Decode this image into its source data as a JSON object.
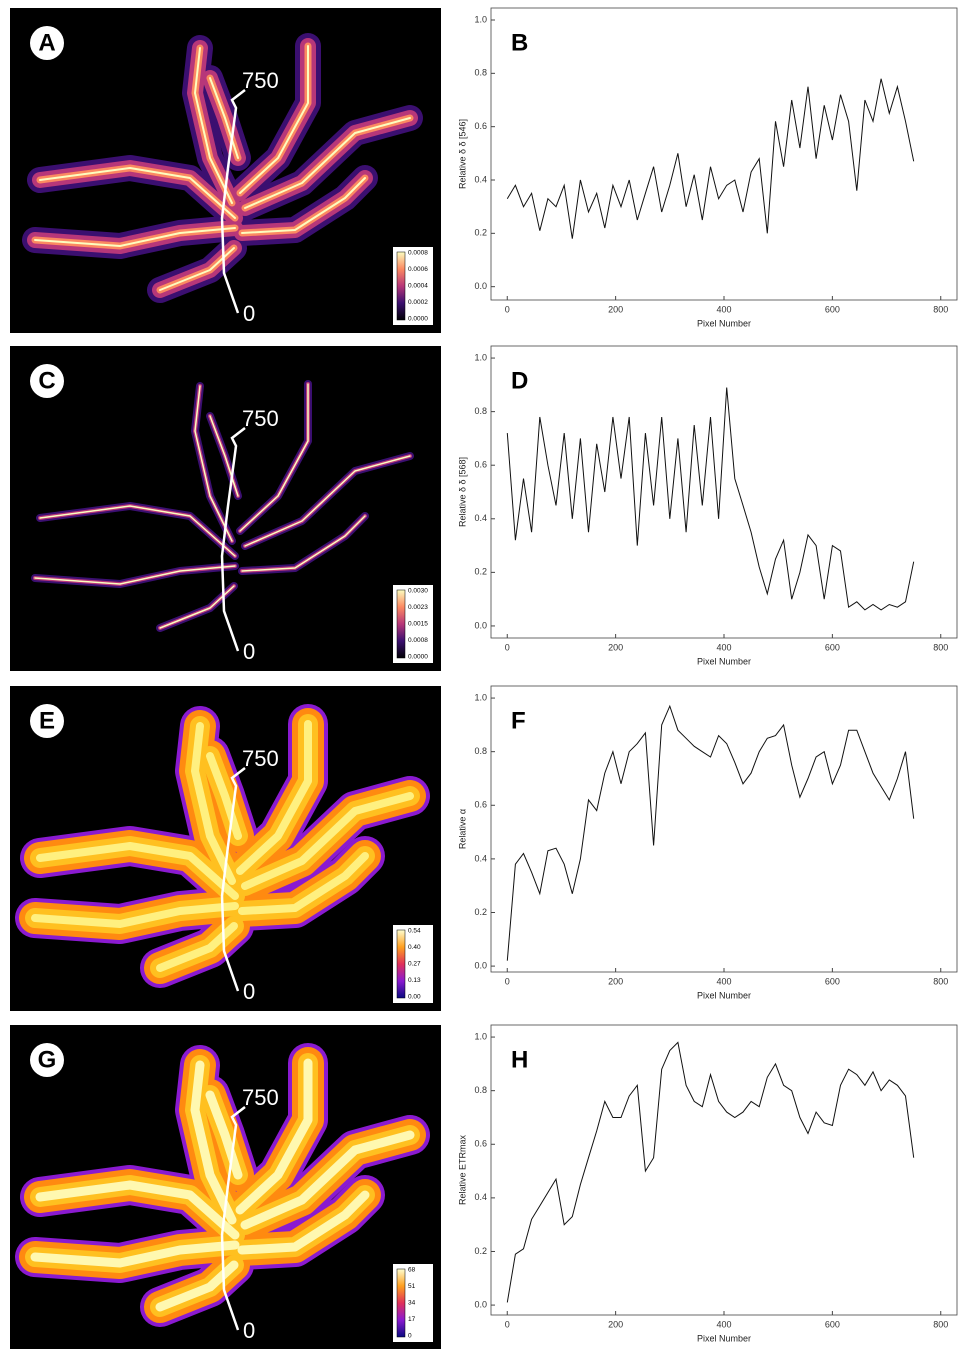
{
  "images": [
    {
      "label": "A",
      "track_end": "750",
      "track_start": "0",
      "colorbar": [
        "0.0008",
        "0.0006",
        "0.0004",
        "0.0002",
        "0.0000"
      ]
    },
    {
      "label": "C",
      "track_end": "750",
      "track_start": "0",
      "colorbar": [
        "0.0030",
        "0.0023",
        "0.0015",
        "0.0008",
        "0.0000"
      ]
    },
    {
      "label": "E",
      "track_end": "750",
      "track_start": "0",
      "colorbar": [
        "0.54",
        "0.40",
        "0.27",
        "0.13",
        "0.00"
      ]
    },
    {
      "label": "G",
      "track_end": "750",
      "track_start": "0",
      "colorbar": [
        "68",
        "51",
        "34",
        "17",
        "0"
      ]
    }
  ],
  "chart_data": [
    {
      "type": "line",
      "title": "B",
      "xlabel": "Pixel Number",
      "ylabel": "Relative δ δ [546]",
      "color": "#111111",
      "x": [
        0,
        15,
        30,
        45,
        60,
        75,
        90,
        105,
        120,
        135,
        150,
        165,
        180,
        195,
        210,
        225,
        240,
        255,
        270,
        285,
        300,
        315,
        330,
        345,
        360,
        375,
        390,
        405,
        420,
        435,
        450,
        465,
        480,
        495,
        510,
        525,
        540,
        555,
        570,
        585,
        600,
        615,
        630,
        645,
        660,
        675,
        690,
        705,
        720,
        735,
        750
      ],
      "values": [
        0.33,
        0.38,
        0.3,
        0.35,
        0.21,
        0.33,
        0.3,
        0.38,
        0.18,
        0.4,
        0.28,
        0.35,
        0.22,
        0.38,
        0.3,
        0.4,
        0.25,
        0.35,
        0.45,
        0.28,
        0.38,
        0.5,
        0.3,
        0.42,
        0.25,
        0.45,
        0.33,
        0.38,
        0.4,
        0.28,
        0.43,
        0.48,
        0.2,
        0.62,
        0.45,
        0.7,
        0.52,
        0.75,
        0.48,
        0.68,
        0.55,
        0.72,
        0.62,
        0.36,
        0.7,
        0.62,
        0.78,
        0.65,
        0.75,
        0.62,
        0.47
      ],
      "xlim": [
        -30,
        830
      ],
      "ylim": [
        -0.05,
        1.045
      ],
      "xticks": [
        0,
        200,
        400,
        600,
        800
      ],
      "yticks": [
        {
          "value": 0,
          "label": "0.0"
        },
        {
          "value": 0.2,
          "label": "0.2"
        },
        {
          "value": 0.4,
          "label": "0.4"
        },
        {
          "value": 0.6,
          "label": "0.6"
        },
        {
          "value": 0.8,
          "label": "0.8"
        },
        {
          "value": 1,
          "label": "1.0"
        }
      ]
    },
    {
      "type": "line",
      "title": "D",
      "xlabel": "Pixel Number",
      "ylabel": "Relative δ δ [568]",
      "color": "#111111",
      "x": [
        0,
        15,
        30,
        45,
        60,
        75,
        90,
        105,
        120,
        135,
        150,
        165,
        180,
        195,
        210,
        225,
        240,
        255,
        270,
        285,
        300,
        315,
        330,
        345,
        360,
        375,
        390,
        405,
        420,
        435,
        450,
        465,
        480,
        495,
        510,
        525,
        540,
        555,
        570,
        585,
        600,
        615,
        630,
        645,
        660,
        675,
        690,
        705,
        720,
        735,
        750
      ],
      "values": [
        0.72,
        0.32,
        0.55,
        0.35,
        0.78,
        0.6,
        0.45,
        0.72,
        0.4,
        0.7,
        0.35,
        0.68,
        0.5,
        0.78,
        0.55,
        0.78,
        0.3,
        0.72,
        0.45,
        0.78,
        0.4,
        0.7,
        0.35,
        0.75,
        0.45,
        0.78,
        0.4,
        0.89,
        0.55,
        0.45,
        0.35,
        0.22,
        0.12,
        0.25,
        0.32,
        0.1,
        0.2,
        0.34,
        0.3,
        0.1,
        0.3,
        0.28,
        0.07,
        0.09,
        0.06,
        0.08,
        0.06,
        0.08,
        0.07,
        0.09,
        0.24
      ],
      "xlim": [
        -30,
        830
      ],
      "ylim": [
        -0.045,
        1.045
      ],
      "xticks": [
        0,
        200,
        400,
        600,
        800
      ],
      "yticks": [
        {
          "value": 0,
          "label": "0.0"
        },
        {
          "value": 0.2,
          "label": "0.2"
        },
        {
          "value": 0.4,
          "label": "0.4"
        },
        {
          "value": 0.6,
          "label": "0.6"
        },
        {
          "value": 0.8,
          "label": "0.8"
        },
        {
          "value": 1,
          "label": "1.0"
        }
      ]
    },
    {
      "type": "line",
      "title": "F",
      "xlabel": "Pixel Number",
      "ylabel": "Relative α",
      "color": "#111111",
      "x": [
        0,
        15,
        30,
        45,
        60,
        75,
        90,
        105,
        120,
        135,
        150,
        165,
        180,
        195,
        210,
        225,
        240,
        255,
        270,
        285,
        300,
        315,
        330,
        345,
        360,
        375,
        390,
        405,
        420,
        435,
        450,
        465,
        480,
        495,
        510,
        525,
        540,
        555,
        570,
        585,
        600,
        615,
        630,
        645,
        660,
        675,
        690,
        705,
        720,
        735,
        750
      ],
      "values": [
        0.02,
        0.38,
        0.42,
        0.35,
        0.27,
        0.43,
        0.44,
        0.38,
        0.27,
        0.4,
        0.62,
        0.58,
        0.72,
        0.8,
        0.68,
        0.8,
        0.83,
        0.87,
        0.45,
        0.9,
        0.97,
        0.88,
        0.85,
        0.82,
        0.8,
        0.78,
        0.86,
        0.83,
        0.76,
        0.68,
        0.72,
        0.8,
        0.85,
        0.86,
        0.9,
        0.75,
        0.63,
        0.7,
        0.78,
        0.8,
        0.68,
        0.75,
        0.88,
        0.88,
        0.8,
        0.72,
        0.67,
        0.62,
        0.7,
        0.8,
        0.55
      ],
      "xlim": [
        -30,
        830
      ],
      "ylim": [
        -0.022,
        1.045
      ],
      "xticks": [
        0,
        200,
        400,
        600,
        800
      ],
      "yticks": [
        {
          "value": 0,
          "label": "0.0"
        },
        {
          "value": 0.2,
          "label": "0.2"
        },
        {
          "value": 0.4,
          "label": "0.4"
        },
        {
          "value": 0.6,
          "label": "0.6"
        },
        {
          "value": 0.8,
          "label": "0.8"
        },
        {
          "value": 1,
          "label": "1.0"
        }
      ]
    },
    {
      "type": "line",
      "title": "H",
      "xlabel": "Pixel Number",
      "ylabel": "Relative ETRmax",
      "color": "#111111",
      "x": [
        0,
        15,
        30,
        45,
        60,
        75,
        90,
        105,
        120,
        135,
        150,
        165,
        180,
        195,
        210,
        225,
        240,
        255,
        270,
        285,
        300,
        315,
        330,
        345,
        360,
        375,
        390,
        405,
        420,
        435,
        450,
        465,
        480,
        495,
        510,
        525,
        540,
        555,
        570,
        585,
        600,
        615,
        630,
        645,
        660,
        675,
        690,
        705,
        720,
        735,
        750
      ],
      "values": [
        0.01,
        0.19,
        0.21,
        0.32,
        0.37,
        0.42,
        0.47,
        0.3,
        0.33,
        0.45,
        0.55,
        0.65,
        0.76,
        0.7,
        0.7,
        0.78,
        0.82,
        0.5,
        0.55,
        0.88,
        0.95,
        0.98,
        0.82,
        0.76,
        0.74,
        0.86,
        0.76,
        0.72,
        0.7,
        0.72,
        0.76,
        0.74,
        0.85,
        0.9,
        0.82,
        0.8,
        0.7,
        0.64,
        0.72,
        0.68,
        0.67,
        0.82,
        0.88,
        0.86,
        0.82,
        0.87,
        0.8,
        0.84,
        0.82,
        0.78,
        0.55
      ],
      "xlim": [
        -30,
        830
      ],
      "ylim": [
        -0.037,
        1.045
      ],
      "xticks": [
        0,
        200,
        400,
        600,
        800
      ],
      "yticks": [
        {
          "value": 0,
          "label": "0.0"
        },
        {
          "value": 0.2,
          "label": "0.2"
        },
        {
          "value": 0.4,
          "label": "0.4"
        },
        {
          "value": 0.6,
          "label": "0.6"
        },
        {
          "value": 0.8,
          "label": "0.8"
        },
        {
          "value": 1,
          "label": "1.0"
        }
      ]
    }
  ]
}
